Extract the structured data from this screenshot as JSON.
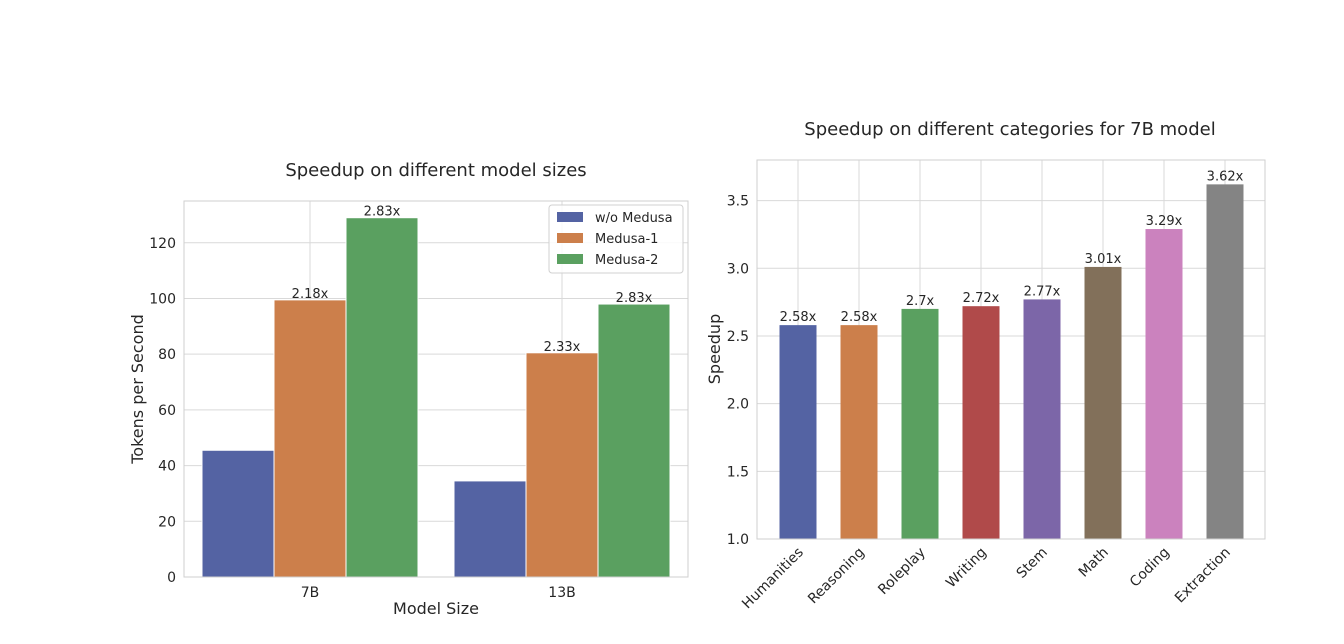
{
  "chart_data": [
    {
      "type": "bar",
      "title": "Speedup on different model sizes",
      "xlabel": "Model Size",
      "ylabel": "Tokens per Second",
      "categories": [
        "7B",
        "13B"
      ],
      "ylim": [
        0,
        135
      ],
      "yticks": [
        0,
        20,
        40,
        60,
        80,
        100,
        120
      ],
      "grid": true,
      "legend_position": "top-right",
      "series": [
        {
          "name": "w/o Medusa",
          "color": "#5463a3",
          "values": [
            45.5,
            34.5
          ],
          "labels": [
            "",
            ""
          ]
        },
        {
          "name": "Medusa-1",
          "color": "#cc7f4b",
          "values": [
            99.5,
            80.5
          ],
          "labels": [
            "2.18x",
            "2.33x"
          ]
        },
        {
          "name": "Medusa-2",
          "color": "#5aa060",
          "values": [
            129,
            98
          ],
          "labels": [
            "2.83x",
            "2.83x"
          ]
        }
      ]
    },
    {
      "type": "bar",
      "title": "Speedup on different categories for 7B model",
      "xlabel": "",
      "ylabel": "Speedup",
      "categories": [
        "Humanities",
        "Reasoning",
        "Roleplay",
        "Writing",
        "Stem",
        "Math",
        "Coding",
        "Extraction"
      ],
      "values": [
        2.58,
        2.58,
        2.7,
        2.72,
        2.77,
        3.01,
        3.29,
        3.62
      ],
      "labels": [
        "2.58x",
        "2.58x",
        "2.7x",
        "2.72x",
        "2.77x",
        "3.01x",
        "3.29x",
        "3.62x"
      ],
      "colors": [
        "#5463a3",
        "#cc7f4b",
        "#5aa060",
        "#b04a4a",
        "#7c66a8",
        "#82705a",
        "#cb82be",
        "#848484"
      ],
      "ylim": [
        1.0,
        3.8
      ],
      "yticks": [
        1.0,
        1.5,
        2.0,
        2.5,
        3.0,
        3.5
      ],
      "grid": true
    }
  ]
}
